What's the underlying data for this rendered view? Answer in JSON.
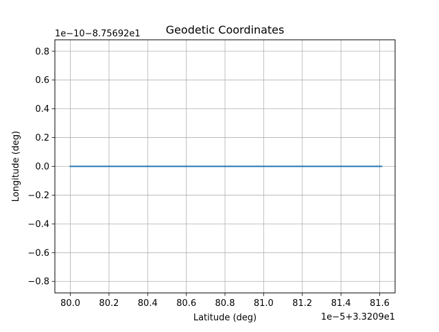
{
  "chart_data": {
    "type": "line",
    "title": "Geodetic Coordinates",
    "xlabel": "Latitude (deg)",
    "ylabel": "Longitude (deg)",
    "x_offset_text": "1e−5+3.3209e1",
    "y_offset_text": "1e−10−8.75692e1",
    "x_ticks": [
      80.0,
      80.2,
      80.4,
      80.6,
      80.8,
      81.0,
      81.2,
      81.4,
      81.6
    ],
    "x_tick_labels": [
      "80.0",
      "80.2",
      "80.4",
      "80.6",
      "80.8",
      "81.0",
      "81.2",
      "81.4",
      "81.6"
    ],
    "y_ticks": [
      -0.8,
      -0.6,
      -0.4,
      -0.2,
      0.0,
      0.2,
      0.4,
      0.6,
      0.8
    ],
    "y_tick_labels": [
      "−0.8",
      "−0.6",
      "−0.4",
      "−0.2",
      "0.0",
      "0.2",
      "0.4",
      "0.6",
      "0.8"
    ],
    "xlim": [
      79.92,
      81.68
    ],
    "ylim": [
      -0.88,
      0.88
    ],
    "grid": true,
    "series": [
      {
        "color": "#1f77b4",
        "x": [
          80.0,
          81.61
        ],
        "y": [
          0.0,
          0.0
        ]
      }
    ]
  }
}
